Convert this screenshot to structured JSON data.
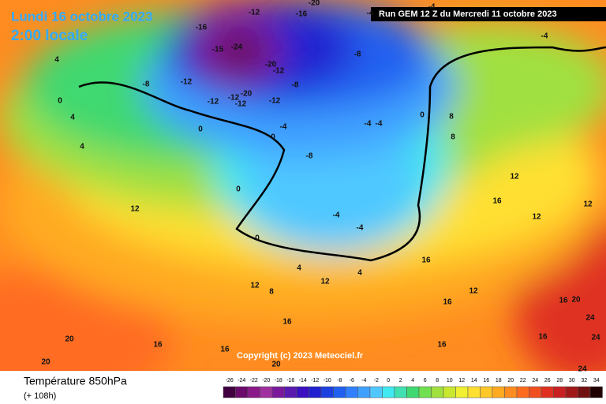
{
  "header": {
    "date": "Lundi 16 octobre 2023",
    "time": "2:00 locale",
    "run": "Run GEM 12 Z du Mercredi 11 octobre 2023"
  },
  "copyright": "Copyright (c) 2023 Meteociel.fr",
  "footer": {
    "title": "Température 850hPa",
    "lead": "(+ 108h)"
  },
  "scale": {
    "values": [
      -26,
      -24,
      -22,
      -20,
      -18,
      -16,
      -14,
      -12,
      -10,
      -8,
      -6,
      -4,
      -2,
      0,
      2,
      4,
      6,
      8,
      10,
      12,
      14,
      16,
      18,
      20,
      22,
      24,
      26,
      28,
      30,
      32,
      34
    ],
    "colors": [
      "#400040",
      "#6a0a6a",
      "#8a1a8a",
      "#a030a0",
      "#7a1a9a",
      "#5a1ab0",
      "#3a10c0",
      "#2020d0",
      "#1a40e0",
      "#2060f0",
      "#3080ff",
      "#40a0ff",
      "#50c8ff",
      "#40e8f0",
      "#40e0b0",
      "#40d870",
      "#70e050",
      "#a0e040",
      "#c8e830",
      "#f0f030",
      "#ffe030",
      "#ffc828",
      "#ffaa20",
      "#ff8c20",
      "#ff6c20",
      "#f05020",
      "#e03020",
      "#c82020",
      "#a01818",
      "#701010",
      "#200000"
    ]
  },
  "map_labels": [
    "-16",
    "-12",
    "-16",
    "-20",
    "-15",
    "-24",
    "-20",
    "-12",
    "-8",
    "-12",
    "-12",
    "-12",
    "-20",
    "-12",
    "-12",
    "-8",
    "-8",
    "-4",
    "-4",
    "-4",
    "4",
    "0",
    "4",
    "4",
    "0",
    "0",
    "-4",
    "-8",
    "-4",
    "-4",
    "0",
    "8",
    "8",
    "12",
    "12",
    "16",
    "12",
    "12",
    "16",
    "12",
    "16",
    "20",
    "24",
    "24",
    "24",
    "20",
    "20",
    "16",
    "16",
    "20",
    "16",
    "16",
    "16",
    "12",
    "16",
    "-4",
    "-4",
    "0",
    "0",
    "8",
    "12",
    "4",
    "4"
  ]
}
